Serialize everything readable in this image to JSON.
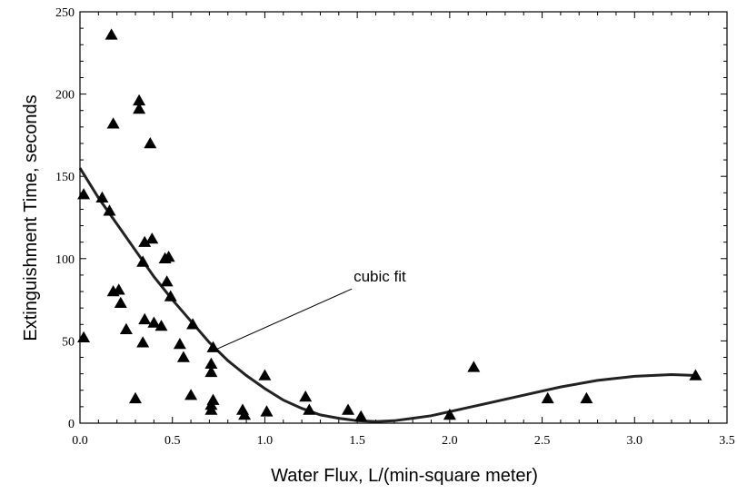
{
  "chart_data": {
    "type": "scatter",
    "title": "",
    "xlabel": "Water Flux,  L/(min-square meter)",
    "ylabel": "Extinguishment Time, seconds",
    "xlim": [
      0.0,
      3.5
    ],
    "ylim": [
      0,
      250
    ],
    "x_ticks": [
      0.0,
      0.5,
      1.0,
      1.5,
      2.0,
      2.5,
      3.0,
      3.5
    ],
    "x_tick_labels": [
      "0.0",
      "0.5",
      "1.0",
      "1.5",
      "2.0",
      "2.5",
      "3.0",
      "3.5"
    ],
    "y_ticks": [
      0,
      50,
      100,
      150,
      200,
      250
    ],
    "y_tick_labels": [
      "0",
      "50",
      "100",
      "150",
      "200",
      "250"
    ],
    "grid": false,
    "marker": "triangle",
    "marker_color": "#000000",
    "series": [
      {
        "points": [
          [
            0.02,
            139
          ],
          [
            0.02,
            52
          ],
          [
            0.12,
            137
          ],
          [
            0.16,
            129
          ],
          [
            0.17,
            236
          ],
          [
            0.18,
            182
          ],
          [
            0.18,
            80
          ],
          [
            0.21,
            81
          ],
          [
            0.22,
            73
          ],
          [
            0.25,
            57
          ],
          [
            0.3,
            15
          ],
          [
            0.32,
            196
          ],
          [
            0.32,
            191
          ],
          [
            0.34,
            98
          ],
          [
            0.34,
            49
          ],
          [
            0.35,
            110
          ],
          [
            0.35,
            63
          ],
          [
            0.38,
            170
          ],
          [
            0.39,
            112
          ],
          [
            0.4,
            61
          ],
          [
            0.44,
            59
          ],
          [
            0.46,
            100
          ],
          [
            0.47,
            86
          ],
          [
            0.48,
            101
          ],
          [
            0.49,
            77
          ],
          [
            0.54,
            48
          ],
          [
            0.56,
            40
          ],
          [
            0.6,
            17
          ],
          [
            0.61,
            60
          ],
          [
            0.71,
            36
          ],
          [
            0.71,
            31
          ],
          [
            0.71,
            11
          ],
          [
            0.71,
            8
          ],
          [
            0.72,
            46
          ],
          [
            0.72,
            14
          ],
          [
            0.88,
            8
          ],
          [
            0.89,
            5
          ],
          [
            1.0,
            29
          ],
          [
            1.01,
            7
          ],
          [
            1.22,
            16
          ],
          [
            1.24,
            8
          ],
          [
            1.45,
            8
          ],
          [
            1.52,
            4
          ],
          [
            2.0,
            5
          ],
          [
            2.13,
            34
          ],
          [
            2.53,
            15
          ],
          [
            2.74,
            15
          ],
          [
            3.33,
            29
          ]
        ]
      }
    ],
    "fit_curve": {
      "kind": "cubic",
      "points": [
        [
          0.0,
          155
        ],
        [
          0.1,
          137
        ],
        [
          0.2,
          121
        ],
        [
          0.3,
          105
        ],
        [
          0.4,
          89
        ],
        [
          0.5,
          75
        ],
        [
          0.6,
          62
        ],
        [
          0.7,
          49
        ],
        [
          0.8,
          38
        ],
        [
          0.9,
          29
        ],
        [
          1.0,
          21
        ],
        [
          1.1,
          14
        ],
        [
          1.2,
          9
        ],
        [
          1.3,
          5
        ],
        [
          1.4,
          3
        ],
        [
          1.5,
          1.5
        ],
        [
          1.6,
          1
        ],
        [
          1.7,
          1.5
        ],
        [
          1.8,
          3
        ],
        [
          1.9,
          4.5
        ],
        [
          2.0,
          7
        ],
        [
          2.2,
          12
        ],
        [
          2.4,
          17
        ],
        [
          2.6,
          22
        ],
        [
          2.8,
          26
        ],
        [
          3.0,
          28.5
        ],
        [
          3.2,
          29.5
        ],
        [
          3.33,
          29
        ]
      ]
    },
    "annotations": [
      {
        "text": "cubic fit",
        "x": 1.48,
        "y": 86,
        "arrow_to": [
          0.72,
          45
        ]
      }
    ]
  }
}
